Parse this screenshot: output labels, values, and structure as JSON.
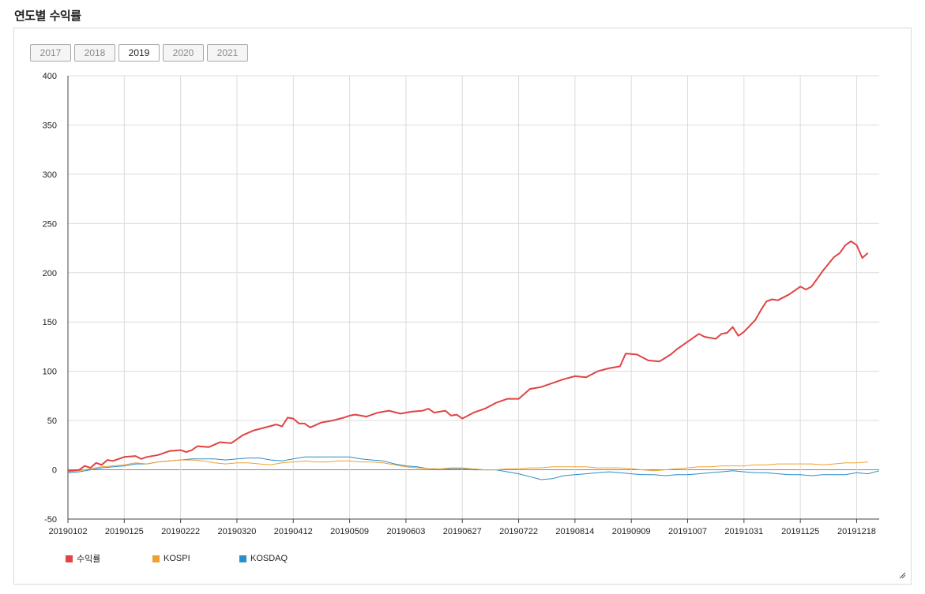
{
  "page": {
    "title": "연도별 수익률"
  },
  "year_tabs": [
    {
      "label": "2017",
      "active": false
    },
    {
      "label": "2018",
      "active": false
    },
    {
      "label": "2019",
      "active": true
    },
    {
      "label": "2020",
      "active": false
    },
    {
      "label": "2021",
      "active": false
    }
  ],
  "chart_data": {
    "type": "line",
    "title": "",
    "xlabel": "",
    "ylabel": "",
    "ylim": [
      -50,
      400
    ],
    "yticks": [
      -50,
      0,
      50,
      100,
      150,
      200,
      250,
      300,
      350,
      400
    ],
    "xticks": [
      "20190102",
      "20190125",
      "20190222",
      "20190320",
      "20190412",
      "20190509",
      "20190603",
      "20190627",
      "20190722",
      "20190814",
      "20190909",
      "20191007",
      "20191031",
      "20191125",
      "20191218"
    ],
    "grid": true,
    "legend_position": "bottom-left",
    "x_index_range": [
      0,
      14.4
    ],
    "series": [
      {
        "name": "수익률",
        "color": "#e04444",
        "width": 2,
        "points": [
          [
            0,
            -1
          ],
          [
            0.2,
            0
          ],
          [
            0.3,
            4
          ],
          [
            0.4,
            2
          ],
          [
            0.5,
            7
          ],
          [
            0.6,
            5
          ],
          [
            0.7,
            10
          ],
          [
            0.8,
            9
          ],
          [
            1,
            13
          ],
          [
            1.2,
            14
          ],
          [
            1.3,
            11
          ],
          [
            1.4,
            13
          ],
          [
            1.6,
            15
          ],
          [
            1.8,
            19
          ],
          [
            2,
            20
          ],
          [
            2.1,
            18
          ],
          [
            2.2,
            20
          ],
          [
            2.3,
            24
          ],
          [
            2.5,
            23
          ],
          [
            2.7,
            28
          ],
          [
            2.9,
            27
          ],
          [
            3.1,
            35
          ],
          [
            3.3,
            40
          ],
          [
            3.5,
            43
          ],
          [
            3.7,
            46
          ],
          [
            3.8,
            44
          ],
          [
            3.9,
            53
          ],
          [
            4,
            52
          ],
          [
            4.1,
            47
          ],
          [
            4.2,
            47
          ],
          [
            4.3,
            43
          ],
          [
            4.5,
            48
          ],
          [
            4.7,
            50
          ],
          [
            4.9,
            53
          ],
          [
            5,
            55
          ],
          [
            5.1,
            56
          ],
          [
            5.3,
            54
          ],
          [
            5.5,
            58
          ],
          [
            5.7,
            60
          ],
          [
            5.9,
            57
          ],
          [
            6.1,
            59
          ],
          [
            6.3,
            60
          ],
          [
            6.4,
            62
          ],
          [
            6.5,
            58
          ],
          [
            6.7,
            60
          ],
          [
            6.8,
            55
          ],
          [
            6.9,
            56
          ],
          [
            7,
            52
          ],
          [
            7.2,
            58
          ],
          [
            7.4,
            62
          ],
          [
            7.6,
            68
          ],
          [
            7.8,
            72
          ],
          [
            8,
            72
          ],
          [
            8.2,
            82
          ],
          [
            8.4,
            84
          ],
          [
            8.6,
            88
          ],
          [
            8.8,
            92
          ],
          [
            9,
            95
          ],
          [
            9.2,
            94
          ],
          [
            9.4,
            100
          ],
          [
            9.6,
            103
          ],
          [
            9.8,
            105
          ],
          [
            9.9,
            118
          ],
          [
            10.1,
            117
          ],
          [
            10.3,
            111
          ],
          [
            10.5,
            110
          ],
          [
            10.7,
            117
          ],
          [
            10.8,
            122
          ],
          [
            11,
            130
          ],
          [
            11.2,
            138
          ],
          [
            11.3,
            135
          ],
          [
            11.5,
            133
          ],
          [
            11.6,
            138
          ],
          [
            11.7,
            139
          ],
          [
            11.8,
            145
          ],
          [
            11.9,
            136
          ],
          [
            12,
            140
          ],
          [
            12.2,
            152
          ],
          [
            12.3,
            162
          ],
          [
            12.4,
            171
          ],
          [
            12.5,
            173
          ],
          [
            12.6,
            172
          ],
          [
            12.8,
            178
          ],
          [
            13,
            186
          ],
          [
            13.1,
            183
          ],
          [
            13.2,
            186
          ],
          [
            13.4,
            202
          ],
          [
            13.5,
            209
          ],
          [
            13.6,
            216
          ],
          [
            13.7,
            220
          ],
          [
            13.8,
            228
          ],
          [
            13.9,
            232
          ],
          [
            14,
            228
          ],
          [
            14.1,
            215
          ],
          [
            14.2,
            220
          ]
        ]
      },
      {
        "name": "KOSPI",
        "color": "#f0a030",
        "width": 1,
        "points": [
          [
            0,
            -2
          ],
          [
            0.2,
            -1
          ],
          [
            0.4,
            1
          ],
          [
            0.6,
            3
          ],
          [
            0.8,
            4
          ],
          [
            1,
            5
          ],
          [
            1.2,
            7
          ],
          [
            1.4,
            6
          ],
          [
            1.6,
            8
          ],
          [
            1.8,
            9
          ],
          [
            2,
            10
          ],
          [
            2.2,
            10
          ],
          [
            2.4,
            9
          ],
          [
            2.6,
            7
          ],
          [
            2.8,
            6
          ],
          [
            3,
            7
          ],
          [
            3.2,
            7
          ],
          [
            3.4,
            6
          ],
          [
            3.6,
            5
          ],
          [
            3.8,
            7
          ],
          [
            4,
            8
          ],
          [
            4.2,
            9
          ],
          [
            4.4,
            8
          ],
          [
            4.6,
            8
          ],
          [
            4.8,
            9
          ],
          [
            5,
            9
          ],
          [
            5.2,
            8
          ],
          [
            5.4,
            8
          ],
          [
            5.6,
            7
          ],
          [
            5.8,
            5
          ],
          [
            6,
            3
          ],
          [
            6.2,
            2
          ],
          [
            6.4,
            1
          ],
          [
            6.6,
            1
          ],
          [
            6.8,
            2
          ],
          [
            7,
            2
          ],
          [
            7.2,
            1
          ],
          [
            7.4,
            0
          ],
          [
            7.6,
            0
          ],
          [
            7.8,
            1
          ],
          [
            8,
            1
          ],
          [
            8.2,
            2
          ],
          [
            8.4,
            2
          ],
          [
            8.6,
            3
          ],
          [
            8.8,
            3
          ],
          [
            9,
            3
          ],
          [
            9.2,
            3
          ],
          [
            9.4,
            2
          ],
          [
            9.6,
            2
          ],
          [
            9.8,
            2
          ],
          [
            10,
            1
          ],
          [
            10.2,
            0
          ],
          [
            10.4,
            -1
          ],
          [
            10.6,
            0
          ],
          [
            10.8,
            1
          ],
          [
            11,
            2
          ],
          [
            11.2,
            3
          ],
          [
            11.4,
            3
          ],
          [
            11.6,
            4
          ],
          [
            11.8,
            4
          ],
          [
            12,
            4
          ],
          [
            12.2,
            5
          ],
          [
            12.4,
            5
          ],
          [
            12.6,
            6
          ],
          [
            12.8,
            6
          ],
          [
            13,
            6
          ],
          [
            13.2,
            6
          ],
          [
            13.4,
            5
          ],
          [
            13.6,
            6
          ],
          [
            13.8,
            7
          ],
          [
            14,
            7
          ],
          [
            14.2,
            8
          ]
        ]
      },
      {
        "name": "KOSDAQ",
        "color": "#2a8ec8",
        "width": 1,
        "points": [
          [
            0,
            -3
          ],
          [
            0.2,
            -2
          ],
          [
            0.4,
            0
          ],
          [
            0.6,
            2
          ],
          [
            0.8,
            3
          ],
          [
            1,
            4
          ],
          [
            1.2,
            6
          ],
          [
            1.4,
            6
          ],
          [
            1.6,
            8
          ],
          [
            1.8,
            9
          ],
          [
            2,
            10
          ],
          [
            2.2,
            11
          ],
          [
            2.4,
            11
          ],
          [
            2.6,
            11
          ],
          [
            2.8,
            10
          ],
          [
            3,
            11
          ],
          [
            3.2,
            12
          ],
          [
            3.4,
            12
          ],
          [
            3.6,
            10
          ],
          [
            3.8,
            9
          ],
          [
            4,
            11
          ],
          [
            4.2,
            13
          ],
          [
            4.4,
            13
          ],
          [
            4.6,
            13
          ],
          [
            4.8,
            13
          ],
          [
            5,
            13
          ],
          [
            5.2,
            11
          ],
          [
            5.4,
            10
          ],
          [
            5.6,
            9
          ],
          [
            5.8,
            6
          ],
          [
            6,
            4
          ],
          [
            6.2,
            3
          ],
          [
            6.4,
            1
          ],
          [
            6.6,
            0
          ],
          [
            6.8,
            1
          ],
          [
            7,
            1
          ],
          [
            7.2,
            0
          ],
          [
            7.4,
            0
          ],
          [
            7.6,
            0
          ],
          [
            7.8,
            -2
          ],
          [
            8,
            -4
          ],
          [
            8.2,
            -7
          ],
          [
            8.4,
            -10
          ],
          [
            8.6,
            -9
          ],
          [
            8.8,
            -6
          ],
          [
            9,
            -5
          ],
          [
            9.2,
            -4
          ],
          [
            9.4,
            -3
          ],
          [
            9.6,
            -2
          ],
          [
            9.8,
            -3
          ],
          [
            10,
            -4
          ],
          [
            10.2,
            -5
          ],
          [
            10.4,
            -5
          ],
          [
            10.6,
            -6
          ],
          [
            10.8,
            -5
          ],
          [
            11,
            -5
          ],
          [
            11.2,
            -4
          ],
          [
            11.4,
            -3
          ],
          [
            11.6,
            -2
          ],
          [
            11.8,
            -1
          ],
          [
            12,
            -2
          ],
          [
            12.2,
            -3
          ],
          [
            12.4,
            -3
          ],
          [
            12.6,
            -4
          ],
          [
            12.8,
            -5
          ],
          [
            13,
            -5
          ],
          [
            13.2,
            -6
          ],
          [
            13.4,
            -5
          ],
          [
            13.6,
            -5
          ],
          [
            13.8,
            -5
          ],
          [
            14,
            -3
          ],
          [
            14.2,
            -4
          ],
          [
            14.4,
            -1
          ]
        ]
      }
    ]
  },
  "icons": {
    "resize": "resize-grip-icon"
  }
}
